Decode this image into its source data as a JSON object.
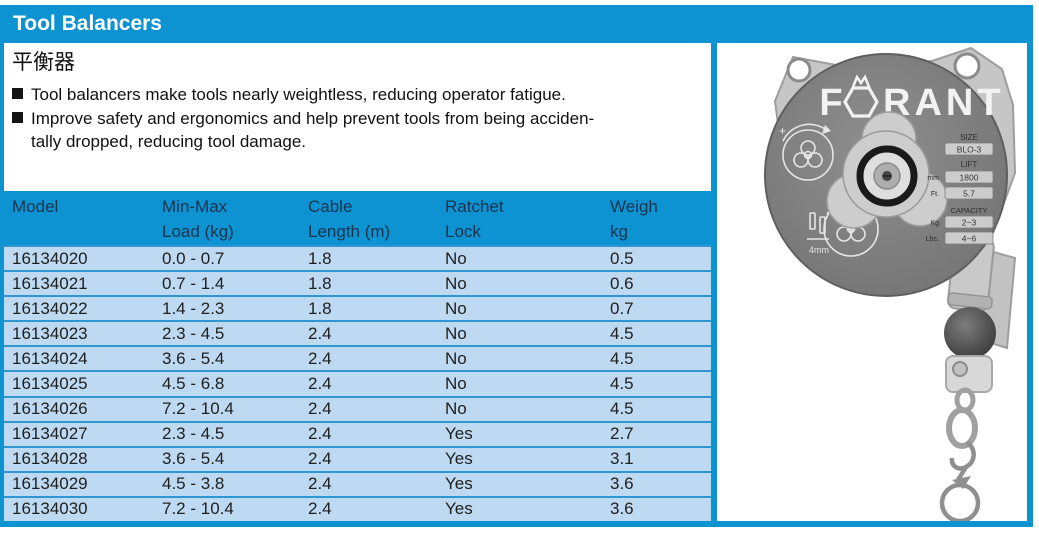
{
  "colors": {
    "accent": "#0d93d2",
    "row_bg": "#bedaf2",
    "row_divider": "#2f96d0",
    "header_text": "#16344e"
  },
  "header": {
    "title": "Tool Balancers"
  },
  "intro": {
    "subtitle_cjk": "平衡器",
    "bullet1": "Tool balancers make tools nearly weightless, reducing operator fatigue.",
    "bullet2_line1": "Improve safety and ergonomics and help prevent tools from being acciden-",
    "bullet2_line2": "tally dropped, reducing tool damage."
  },
  "table": {
    "columns": [
      {
        "line1": "Model",
        "line2": ""
      },
      {
        "line1": "Min-Max",
        "line2": "Load (kg)"
      },
      {
        "line1": "Cable",
        "line2": "Length (m)"
      },
      {
        "line1": "Ratchet",
        "line2": "Lock"
      },
      {
        "line1": "Weigh",
        "line2": "kg"
      }
    ],
    "rows": [
      [
        "16134020",
        "0.0 - 0.7",
        "1.8",
        "No",
        "0.5"
      ],
      [
        "16134021",
        "0.7 - 1.4",
        "1.8",
        "No",
        "0.6"
      ],
      [
        "16134022",
        "1.4 - 2.3",
        "1.8",
        "No",
        "0.7"
      ],
      [
        "16134023",
        "2.3 - 4.5",
        "2.4",
        "No",
        "4.5"
      ],
      [
        "16134024",
        "3.6 - 5.4",
        "2.4",
        "No",
        "4.5"
      ],
      [
        "16134025",
        "4.5 - 6.8",
        "2.4",
        "No",
        "4.5"
      ],
      [
        "16134026",
        "7.2 - 10.4",
        "2.4",
        "No",
        "4.5"
      ],
      [
        "16134027",
        "2.3 - 4.5",
        "2.4",
        "Yes",
        "2.7"
      ],
      [
        "16134028",
        "3.6 - 5.4",
        "2.4",
        "Yes",
        "3.1"
      ],
      [
        "16134029",
        "4.5 - 3.8",
        "2.4",
        "Yes",
        "3.6"
      ],
      [
        "16134030",
        "7.2 - 10.4",
        "2.4",
        "Yes",
        "3.6"
      ]
    ]
  },
  "product": {
    "brand": "FORANT",
    "brand_first_letter": "F",
    "brand_rest": "RANT",
    "plate": {
      "size_label": "SIZE",
      "size_value": "BLO-3",
      "lift_label": "LIFT",
      "mm_label": "mm",
      "mm_value": "1800",
      "ft_label": "Ft.",
      "ft_value": "5.7",
      "capacity_label": "CAPACITY",
      "kg_label": "Kg",
      "kg_value": "2~3",
      "lbs_label": "Lbs.",
      "lbs_value": "4~6"
    },
    "face_markings": {
      "plus": "+",
      "gauge": "4mm"
    }
  }
}
